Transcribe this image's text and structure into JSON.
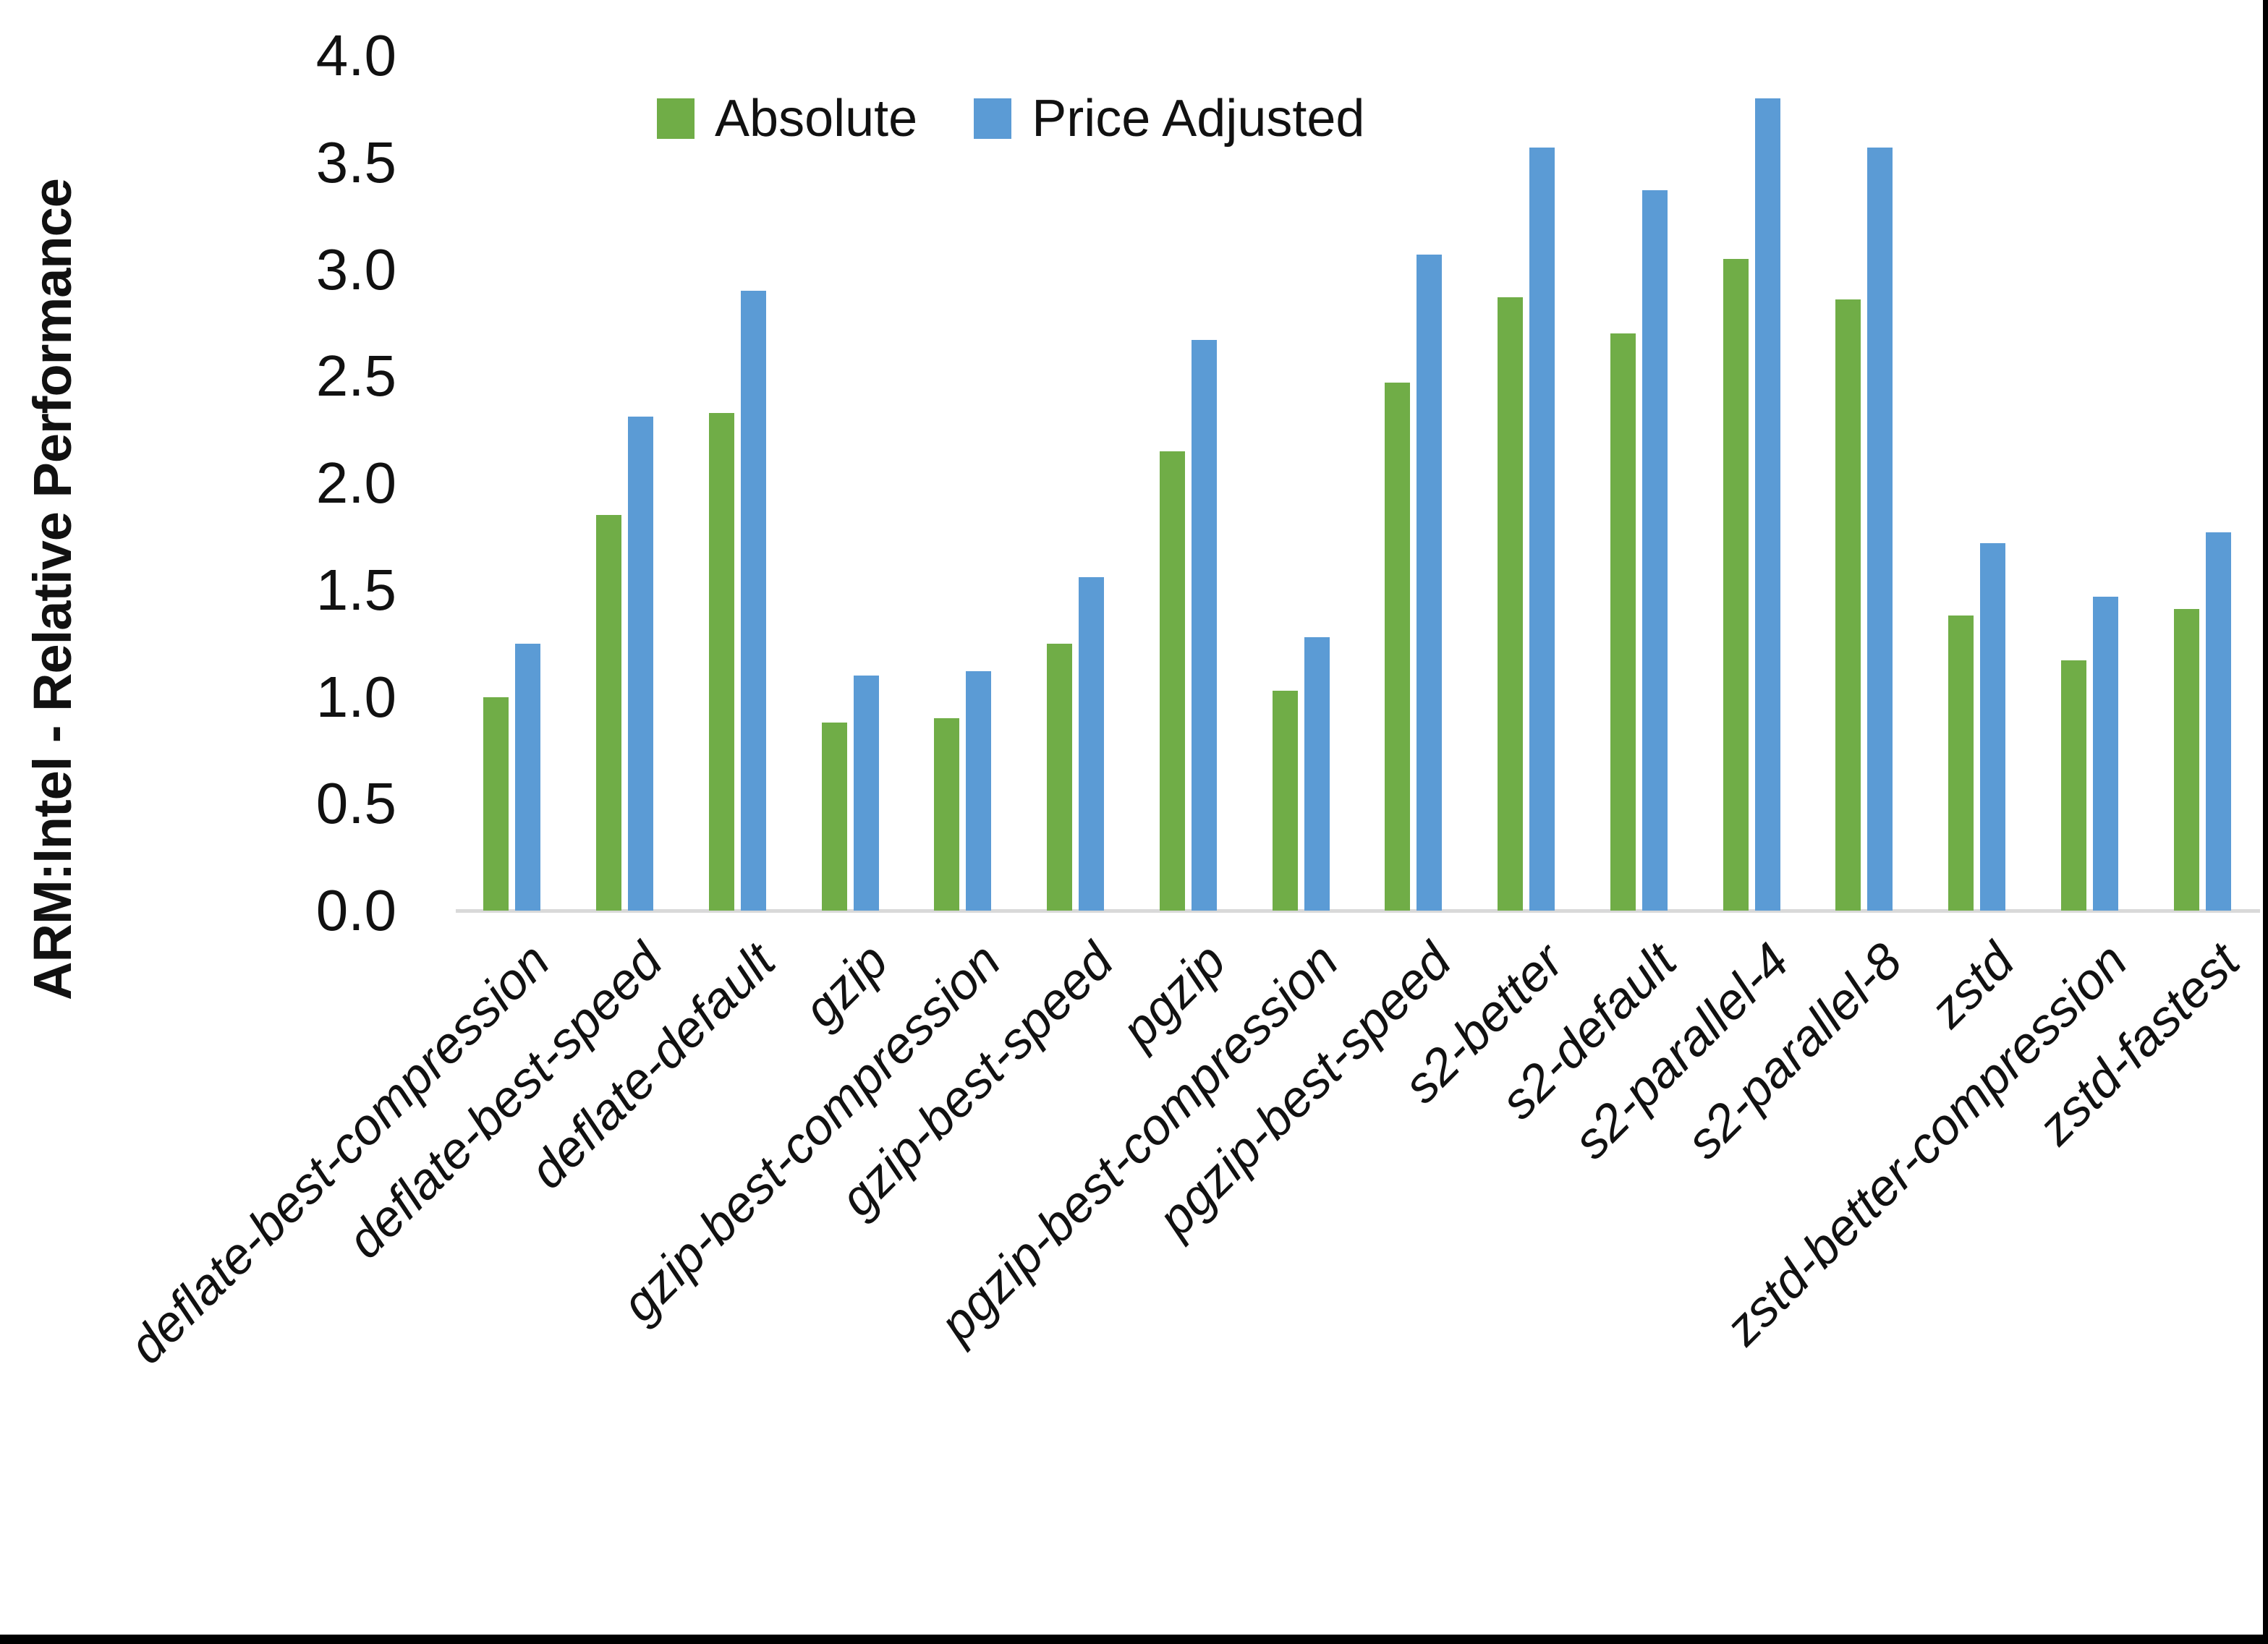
{
  "colors": {
    "absolute_green": "#70AD47",
    "price_adjusted_blue": "#5B9BD5",
    "axis_line": "#D9D9D9",
    "text": "#111111",
    "border": "#000000"
  },
  "chart_data": {
    "type": "bar",
    "title": "",
    "xlabel": "",
    "ylabel": "ARM:Intel - Relative Performance",
    "ylim": [
      0.0,
      4.0
    ],
    "y_tick_step": 0.5,
    "y_ticks": [
      "0.0",
      "0.5",
      "1.0",
      "1.5",
      "2.0",
      "2.5",
      "3.0",
      "3.5",
      "4.0"
    ],
    "grid": false,
    "legend_position": "top-center",
    "categories": [
      "deflate-best-compression",
      "deflate-best-speed",
      "deflate-default",
      "gzip",
      "gzip-best-compression",
      "gzip-best-speed",
      "pgzip",
      "pgzip-best-compression",
      "pgzip-best-speed",
      "s2-better",
      "s2-default",
      "s2-parallel-4",
      "s2-parallel-8",
      "zstd",
      "zstd-better-compression",
      "zstd-fastest"
    ],
    "series": [
      {
        "name": "Absolute",
        "color": "#70AD47",
        "values": [
          1.0,
          1.85,
          2.33,
          0.88,
          0.9,
          1.25,
          2.15,
          1.03,
          2.47,
          2.87,
          2.7,
          3.05,
          2.86,
          1.38,
          1.17,
          1.41
        ]
      },
      {
        "name": "Price Adjusted",
        "color": "#5B9BD5",
        "values": [
          1.25,
          2.31,
          2.9,
          1.1,
          1.12,
          1.56,
          2.67,
          1.28,
          3.07,
          3.57,
          3.37,
          3.8,
          3.57,
          1.72,
          1.47,
          1.77
        ]
      }
    ]
  }
}
